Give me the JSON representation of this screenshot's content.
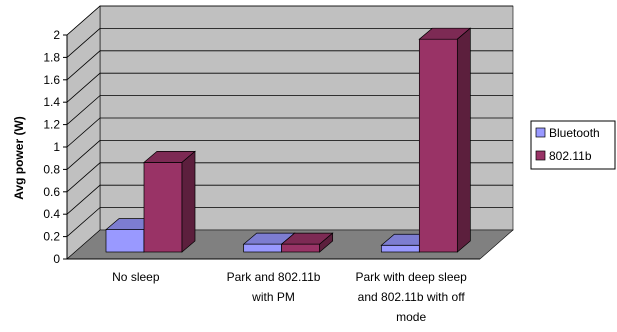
{
  "chart_data": {
    "type": "bar",
    "ylabel": "Avg power (W)",
    "ylim": [
      0,
      2
    ],
    "ytick_step": 0.2,
    "yticks": [
      "0",
      "0.2",
      "0.4",
      "0.6",
      "0.8",
      "1",
      "1.2",
      "1.4",
      "1.6",
      "1.8",
      "2"
    ],
    "categories": [
      [
        "No sleep"
      ],
      [
        "Park and 802.11b",
        "with PM"
      ],
      [
        "Park  with deep sleep",
        "and 802.11b with off",
        "mode"
      ]
    ],
    "series": [
      {
        "name": "Bluetooth",
        "values": [
          0.2,
          0.07,
          0.06
        ],
        "color": "#9999ff"
      },
      {
        "name": "802.11b",
        "values": [
          0.8,
          0.07,
          1.9
        ],
        "color": "#993366"
      }
    ],
    "grid": true,
    "legend": "right",
    "colors": {
      "wall": "#c0c0c0",
      "floor": "#808080",
      "gridline": "#000000"
    }
  }
}
